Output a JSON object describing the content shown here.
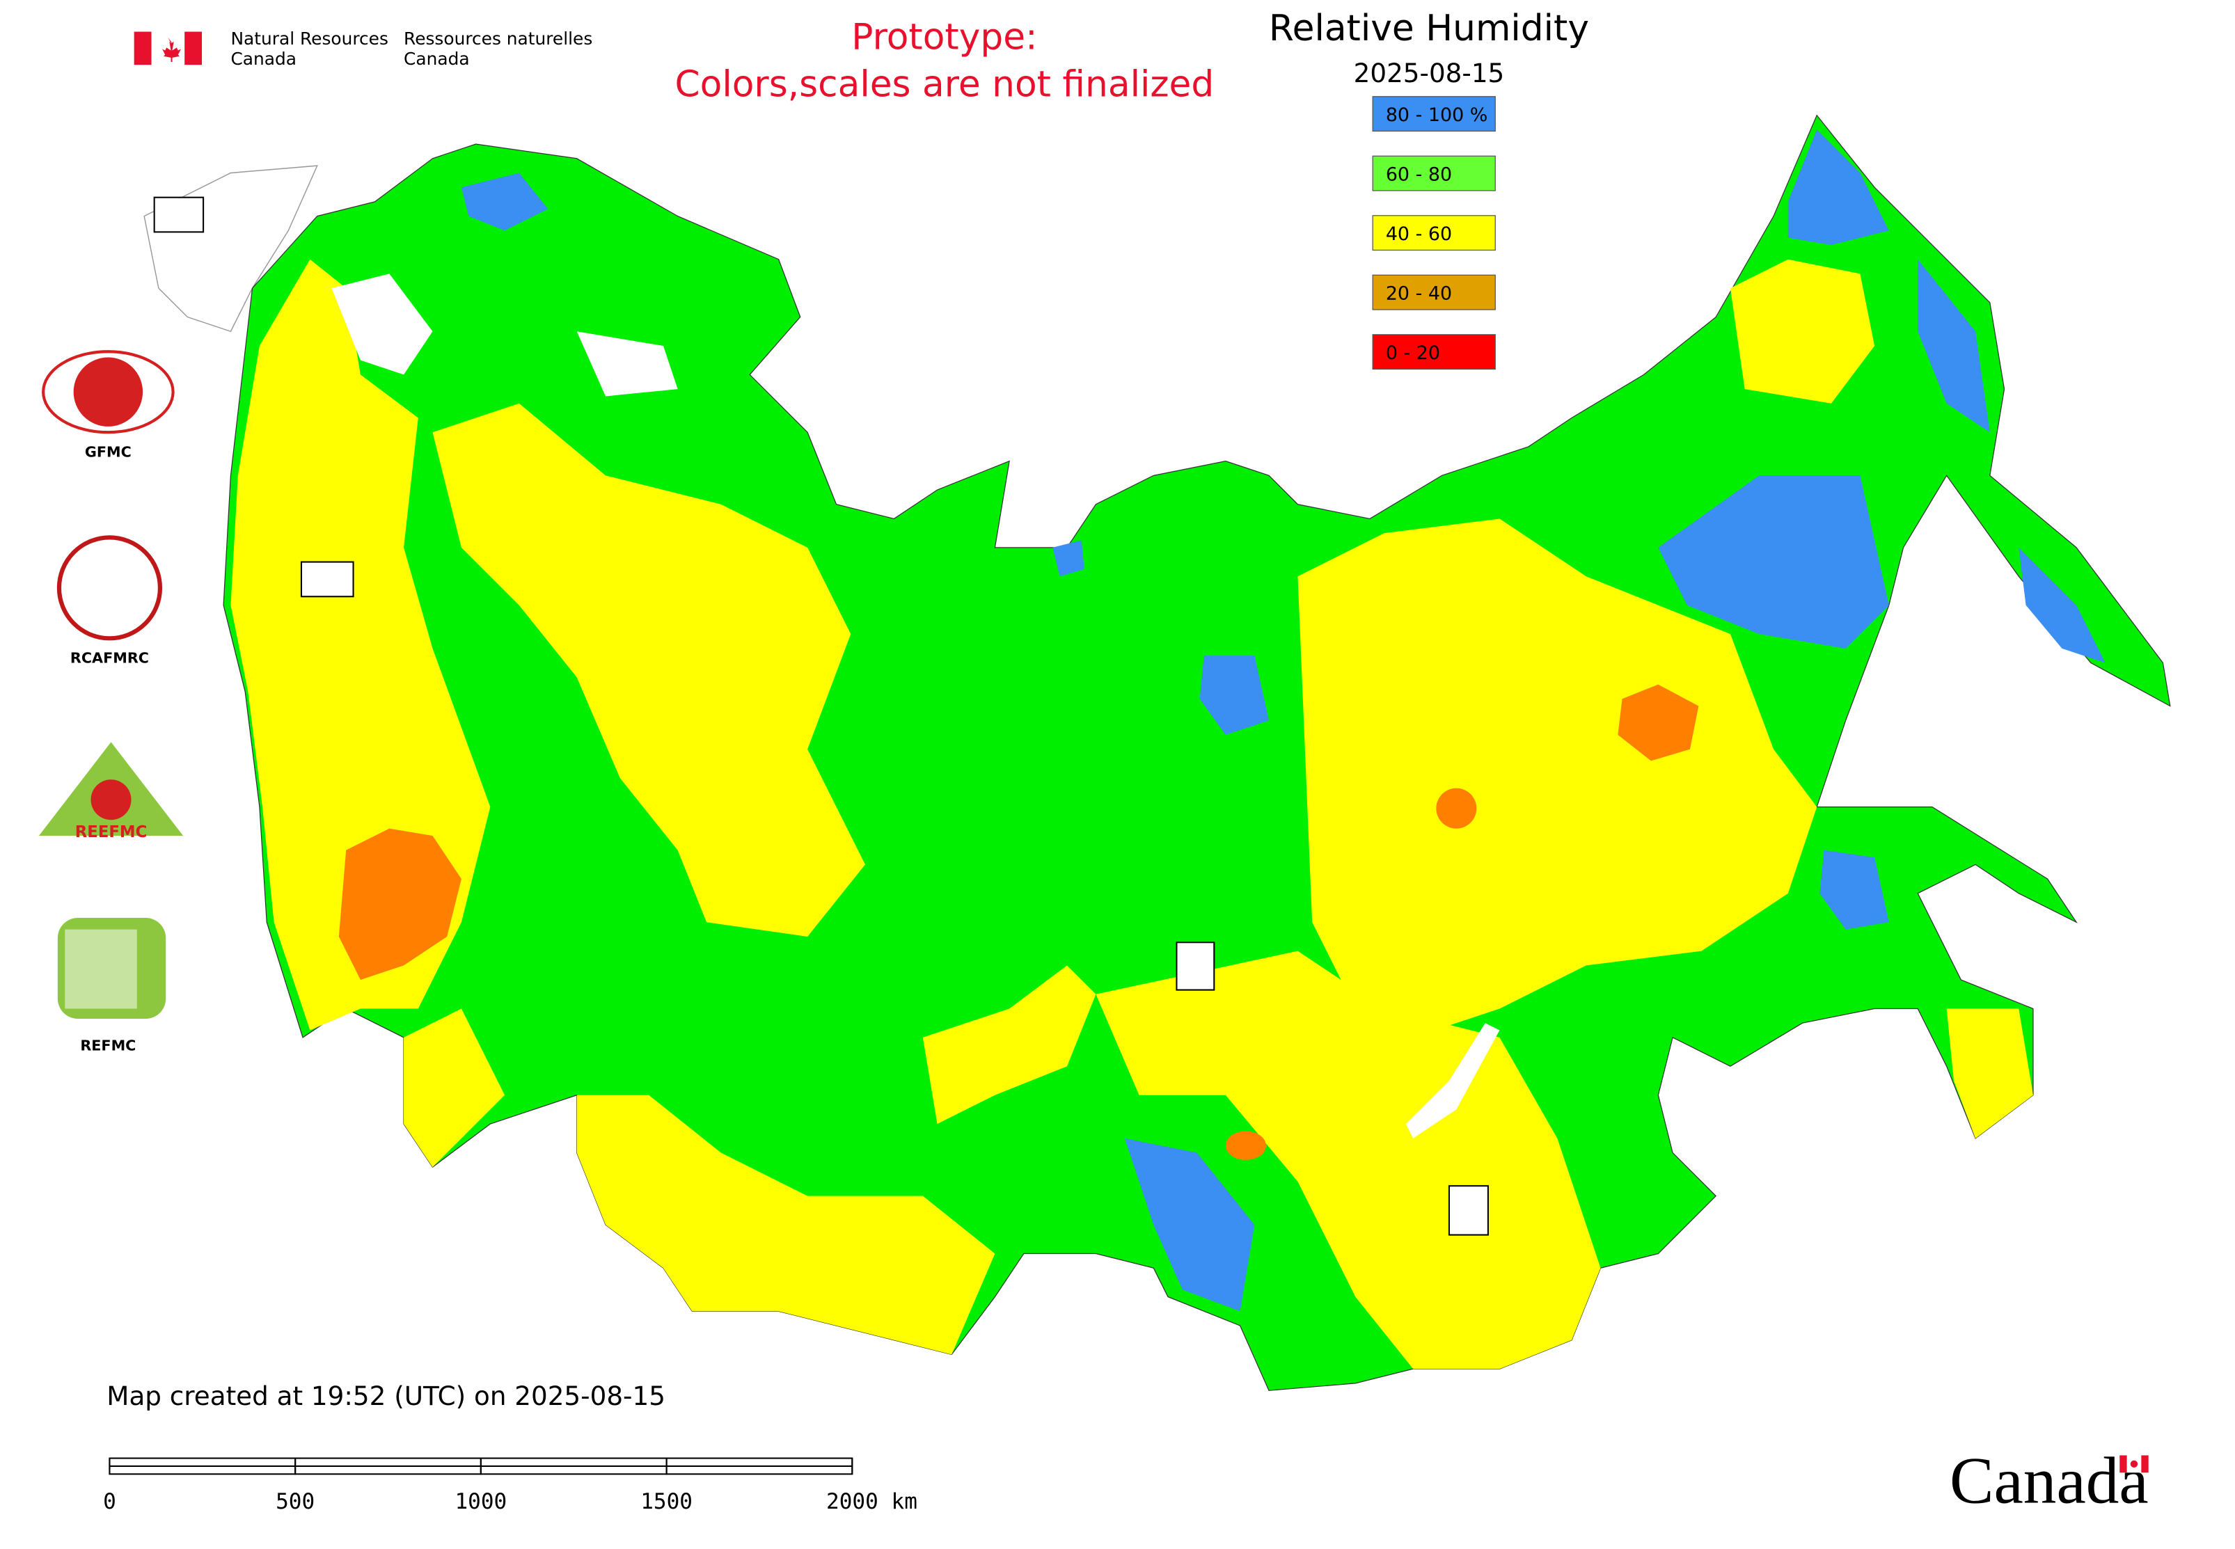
{
  "header": {
    "agency_en": [
      "Natural Resources",
      "Canada"
    ],
    "agency_fr": [
      "Ressources naturelles",
      "Canada"
    ],
    "notice": [
      "Prototype:",
      "Colors,scales are not finalized"
    ]
  },
  "map": {
    "title": "Relative Humidity",
    "date": "2025-08-15",
    "legend": [
      {
        "label": "80 - 100 %",
        "color": "#3b8ff2"
      },
      {
        "label": "60 - 80",
        "color": "#66ff33"
      },
      {
        "label": "40 - 60",
        "color": "#ffff00"
      },
      {
        "label": "20 - 40",
        "color": "#e0a000"
      },
      {
        "label": "0 - 20",
        "color": "#ff0000"
      }
    ],
    "created": "Map created at 19:52 (UTC) on 2025-08-15",
    "scale_bar": {
      "ticks": [
        0,
        500,
        1000,
        1500,
        {
          "value": 2000,
          "label": "2000 km"
        }
      ]
    }
  },
  "logos": [
    "GFMC",
    "RCAFMRC",
    "REEFMC",
    "REFMC"
  ],
  "wordmark": "Canada"
}
